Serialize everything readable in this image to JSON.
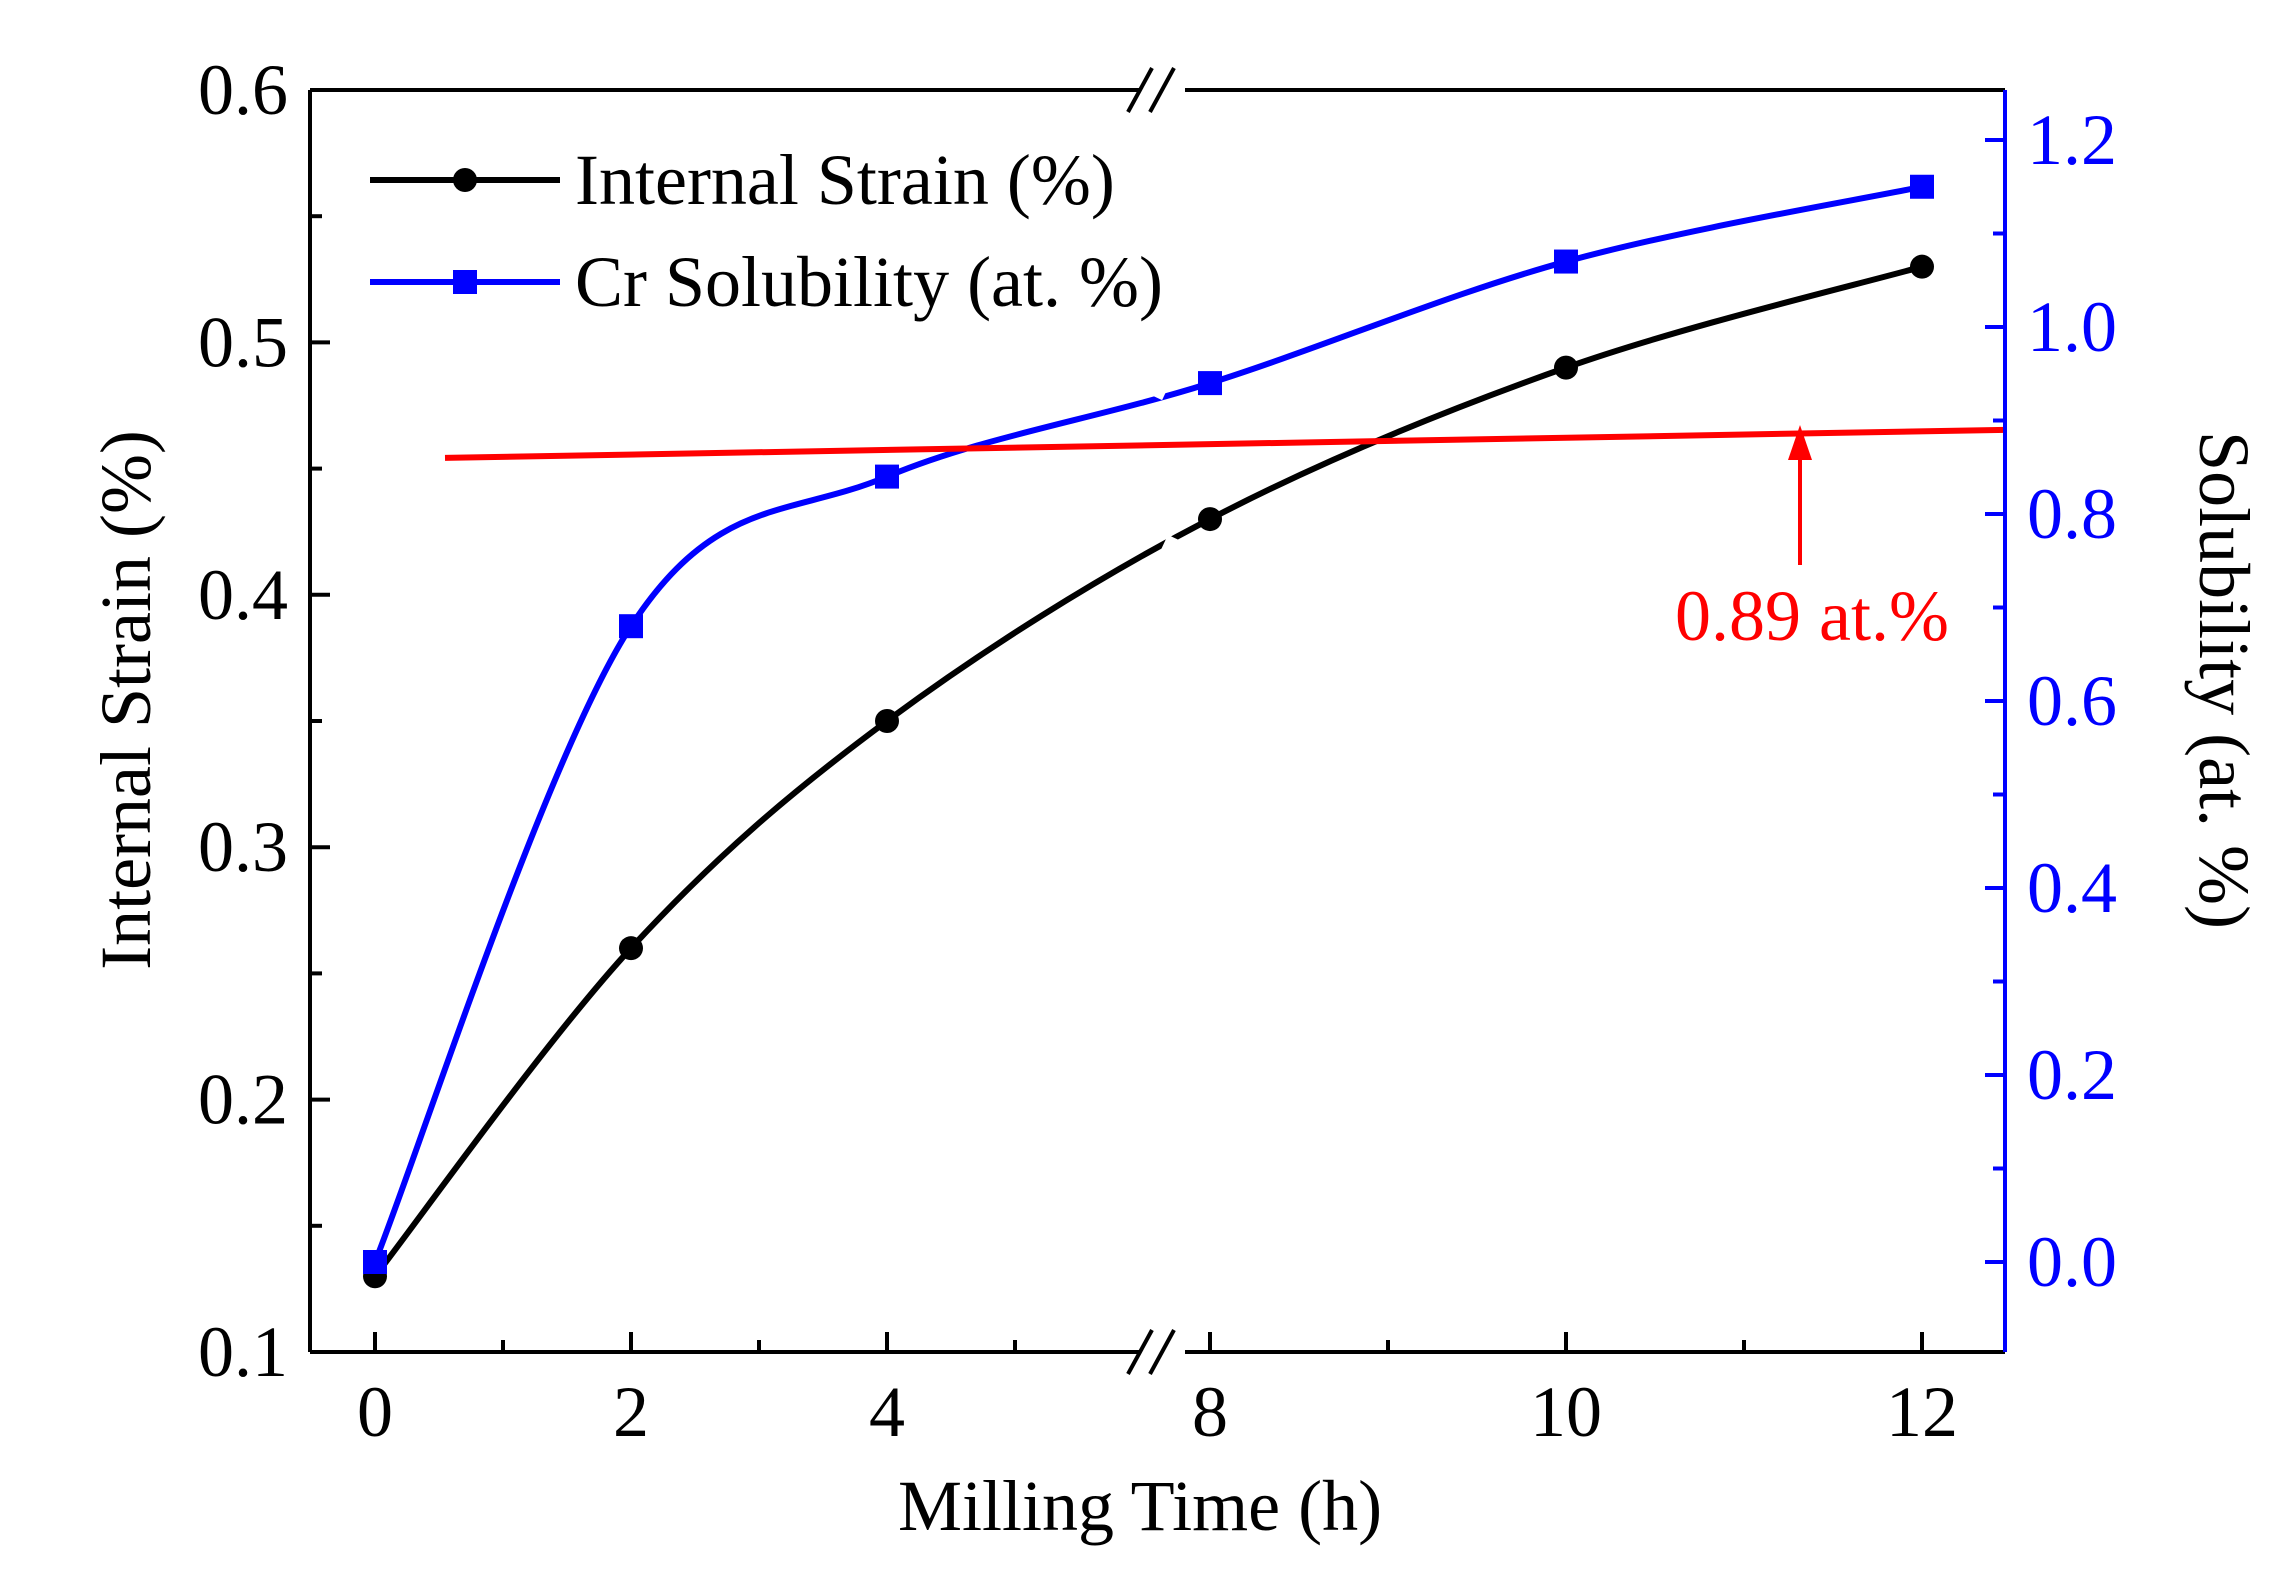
{
  "chart_data": {
    "type": "line",
    "title": "",
    "xlabel": "Milling Time (h)",
    "ylabel": "Internal Strain (%)",
    "y2label": "Solubility (at. %)",
    "x_break": [
      4.7,
      7.3
    ],
    "xticks": [
      0,
      2,
      4,
      8,
      10,
      12
    ],
    "xlim": [
      -0.5,
      12.5
    ],
    "ylim": [
      0.1,
      0.6
    ],
    "yticks": [
      "0.1",
      "0.2",
      "0.3",
      "0.4",
      "0.5",
      "0.6"
    ],
    "y2lim": [
      -0.1,
      1.25
    ],
    "y2ticks": [
      "0.0",
      "0.2",
      "0.4",
      "0.6",
      "0.8",
      "1.0",
      "1.2"
    ],
    "series": [
      {
        "name": "Internal Strain (%)",
        "axis": "left",
        "color": "#000000",
        "marker": "circle",
        "x": [
          0,
          2,
          4,
          8,
          10,
          12
        ],
        "values": [
          0.13,
          0.26,
          0.35,
          0.43,
          0.49,
          0.53
        ]
      },
      {
        "name": "Cr Solubility (at. %)",
        "axis": "right",
        "color": "#0000ff",
        "marker": "square",
        "x": [
          0,
          2,
          4,
          8,
          10,
          12
        ],
        "values": [
          0.0,
          0.68,
          0.84,
          0.94,
          1.07,
          1.15
        ]
      }
    ],
    "reference_line": {
      "label": "0.89 at.%",
      "axis": "right",
      "color": "#ff0000",
      "y_start": 0.86,
      "y_end": 0.89
    },
    "legend_position": "top-left"
  }
}
